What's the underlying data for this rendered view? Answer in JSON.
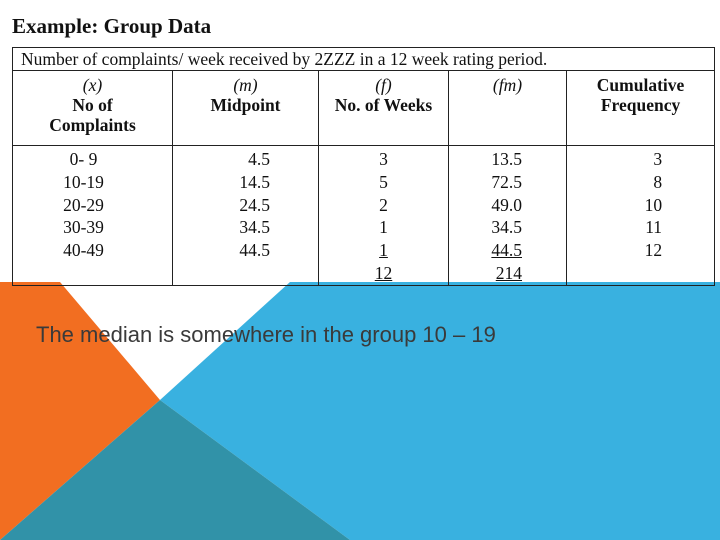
{
  "colors": {
    "orange": "#F26E21",
    "blue": "#39B1E0",
    "teal": "#3192A8",
    "light_blue": "#56C1EA",
    "text_dark": "#3a3a3a"
  },
  "document": {
    "title": "Example: Group Data",
    "table": {
      "caption": "Number of complaints/ week received by 2ZZZ in a 12 week rating period.",
      "headers": [
        {
          "symbol": "(x)",
          "line1": "No of",
          "line2": "Complaints"
        },
        {
          "symbol": "(m)",
          "line1": "Midpoint",
          "line2": ""
        },
        {
          "symbol": "(f)",
          "line1": "No. of Weeks",
          "line2": ""
        },
        {
          "symbol": "(fm)",
          "line1": "",
          "line2": ""
        },
        {
          "symbol": "",
          "line1": "Cumulative",
          "line2": "Frequency"
        }
      ],
      "complaints": [
        "0- 9",
        "10-19",
        "20-29",
        "30-39",
        "40-49"
      ],
      "midpoints": [
        "4.5",
        "14.5",
        "24.5",
        "34.5",
        "44.5"
      ],
      "weeks": [
        "3",
        "5",
        "2",
        "1",
        "1"
      ],
      "fm": [
        "13.5",
        "72.5",
        "49.0",
        "34.5",
        "44.5"
      ],
      "cumulative": [
        "3",
        "8",
        "10",
        "11",
        "12"
      ],
      "total_weeks": "12",
      "total_fm": "214"
    }
  },
  "statement": "The median is somewhere in the group 10 – 19"
}
